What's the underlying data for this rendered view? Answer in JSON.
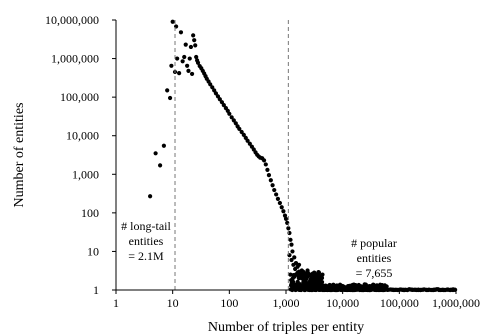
{
  "chart_data": {
    "type": "scatter",
    "title": "",
    "xlabel": "Number of triples per entity",
    "ylabel": "Number of entities",
    "x_scale": "log",
    "y_scale": "log",
    "xlim": [
      1,
      1000000
    ],
    "ylim": [
      1,
      10000000
    ],
    "x_ticks": [
      1,
      10,
      100,
      1000,
      10000,
      100000,
      1000000
    ],
    "x_tick_labels": [
      "1",
      "10",
      "100",
      "1,000",
      "10,000",
      "100,000",
      "1,000,000"
    ],
    "y_ticks": [
      1,
      10,
      100,
      1000,
      10000,
      100000,
      1000000,
      10000000
    ],
    "y_tick_labels": [
      "1",
      "10",
      "100",
      "1,000",
      "10,000",
      "100,000",
      "1,000,000",
      "10,000,000"
    ],
    "grid": false,
    "marker_color": "#000000",
    "reference_lines": [
      {
        "x": 11,
        "style": "dashed"
      },
      {
        "x": 1100,
        "style": "dashed"
      }
    ],
    "annotations": [
      {
        "lines": [
          "# long-tail",
          "entities",
          "= 2.1M"
        ],
        "position": "left-bottom"
      },
      {
        "lines": [
          "# popular",
          "entities",
          "= 7,655"
        ],
        "position": "right-bottom"
      }
    ],
    "points": [
      [
        4,
        270
      ],
      [
        5,
        3500
      ],
      [
        6,
        1700
      ],
      [
        7,
        5500
      ],
      [
        8,
        150000
      ],
      [
        9,
        95000
      ],
      [
        9.5,
        650000
      ],
      [
        10,
        9000000
      ],
      [
        11,
        450000
      ],
      [
        11.5,
        6800000
      ],
      [
        12,
        1000000
      ],
      [
        13,
        420000
      ],
      [
        14,
        4800000
      ],
      [
        15,
        850000
      ],
      [
        16,
        1100000
      ],
      [
        17,
        2300000
      ],
      [
        18,
        650000
      ],
      [
        19,
        480000
      ],
      [
        20,
        1000000
      ],
      [
        21,
        2000000
      ],
      [
        22,
        400000
      ],
      [
        23,
        4000000
      ],
      [
        24,
        3000000
      ],
      [
        25,
        2200000
      ],
      [
        26,
        1100000
      ],
      [
        27,
        900000
      ],
      [
        28,
        780000
      ],
      [
        30,
        640000
      ],
      [
        32,
        560000
      ],
      [
        34,
        480000
      ],
      [
        36,
        410000
      ],
      [
        38,
        350000
      ],
      [
        40,
        300000
      ],
      [
        43,
        255000
      ],
      [
        46,
        215000
      ],
      [
        50,
        180000
      ],
      [
        54,
        150000
      ],
      [
        58,
        125000
      ],
      [
        63,
        105000
      ],
      [
        68,
        88000
      ],
      [
        74,
        74000
      ],
      [
        80,
        62000
      ],
      [
        87,
        52000
      ],
      [
        94,
        44000
      ],
      [
        100,
        37000
      ],
      [
        110,
        30000
      ],
      [
        120,
        25000
      ],
      [
        130,
        21000
      ],
      [
        140,
        17500
      ],
      [
        150,
        15000
      ],
      [
        165,
        12500
      ],
      [
        180,
        10500
      ],
      [
        195,
        8800
      ],
      [
        210,
        7400
      ],
      [
        230,
        6200
      ],
      [
        250,
        5200
      ],
      [
        270,
        4400
      ],
      [
        290,
        3700
      ],
      [
        310,
        3200
      ],
      [
        330,
        2900
      ],
      [
        350,
        2700
      ],
      [
        380,
        2600
      ],
      [
        410,
        2300
      ],
      [
        440,
        1800
      ],
      [
        470,
        1300
      ],
      [
        500,
        950
      ],
      [
        540,
        700
      ],
      [
        580,
        520
      ],
      [
        620,
        390
      ],
      [
        670,
        300
      ],
      [
        720,
        230
      ],
      [
        780,
        180
      ],
      [
        840,
        140
      ],
      [
        900,
        110
      ],
      [
        960,
        85
      ],
      [
        1000,
        70
      ],
      [
        1050,
        55
      ],
      [
        1100,
        40
      ],
      [
        1150,
        30
      ],
      [
        1200,
        20
      ],
      [
        1250,
        15
      ],
      [
        1300,
        10
      ],
      [
        1400,
        7
      ],
      [
        1500,
        5
      ],
      [
        1600,
        4
      ],
      [
        1700,
        3
      ],
      [
        1800,
        2.5
      ],
      [
        1900,
        2
      ],
      [
        2000,
        3
      ],
      [
        2100,
        1.5
      ],
      [
        2300,
        2
      ],
      [
        2500,
        1.5
      ],
      [
        2800,
        2
      ],
      [
        3000,
        1.5
      ],
      [
        3500,
        1.3
      ],
      [
        4000,
        1.5
      ],
      [
        1250,
        6
      ],
      [
        1350,
        4.5
      ],
      [
        1450,
        3.5
      ],
      [
        1700,
        4.5
      ],
      [
        1900,
        3.2
      ],
      [
        2200,
        2.6
      ],
      [
        2600,
        2.4
      ],
      [
        3200,
        2.2
      ],
      [
        1150,
        8
      ],
      [
        1400,
        2.2
      ],
      [
        1600,
        2.8
      ],
      [
        2400,
        3.2
      ],
      [
        5000,
        1.3
      ],
      [
        6000,
        1.2
      ],
      [
        8000,
        1.2
      ],
      [
        10000,
        1.2
      ],
      [
        15000,
        1
      ],
      [
        20000,
        1
      ],
      [
        30000,
        1
      ],
      [
        50000,
        1
      ],
      [
        80000,
        1
      ],
      [
        120000,
        1
      ],
      [
        200000,
        1
      ],
      [
        400000,
        1
      ],
      [
        600000,
        1
      ],
      [
        800000,
        1
      ]
    ],
    "point_bands": [
      {
        "from": 1200,
        "to": 4500,
        "ymin": 1,
        "ymax": 3,
        "count": 160
      },
      {
        "from": 4500,
        "to": 60000,
        "ymin": 1,
        "ymax": 1.4,
        "count": 260
      },
      {
        "from": 60000,
        "to": 1000000,
        "ymin": 1,
        "ymax": 1.05,
        "count": 70
      }
    ]
  }
}
